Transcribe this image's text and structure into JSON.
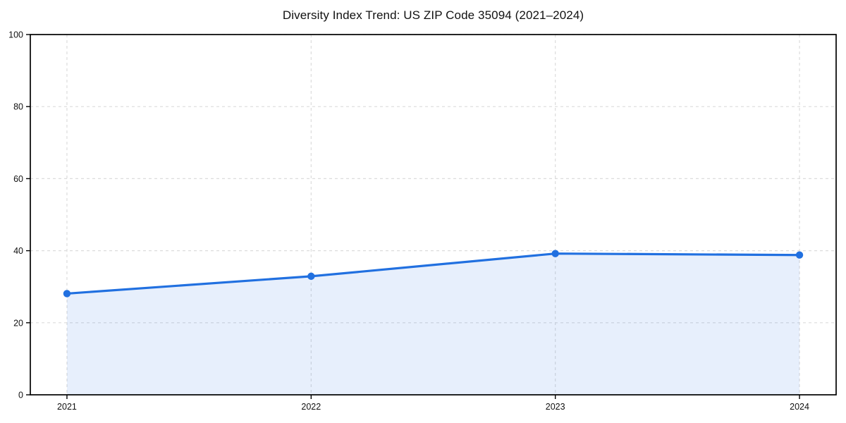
{
  "chart_data": {
    "type": "area",
    "title": "Diversity Index Trend: US ZIP Code 35094 (2021–2024)",
    "x": [
      2021,
      2022,
      2023,
      2024
    ],
    "categories": [
      "2021",
      "2022",
      "2023",
      "2024"
    ],
    "series": [
      {
        "name": "Diversity Index",
        "values": [
          28.1,
          32.9,
          39.2,
          38.8
        ]
      }
    ],
    "xlabel": "",
    "ylabel": "",
    "ylim": [
      0,
      100
    ],
    "xlim": [
      2020.85,
      2024.15
    ],
    "yticks": [
      0,
      20,
      40,
      60,
      80,
      100
    ],
    "grid": "on",
    "grid_style": "dashed",
    "legend": "none",
    "marker": "circle",
    "colors": {
      "line": "#2170e0",
      "marker": "#2170e0",
      "fill": "rgba(33, 112, 224, 0.11)",
      "grid": "#dcdcdc",
      "spine": "#000000",
      "text": "#111111",
      "background": "#ffffff"
    }
  }
}
